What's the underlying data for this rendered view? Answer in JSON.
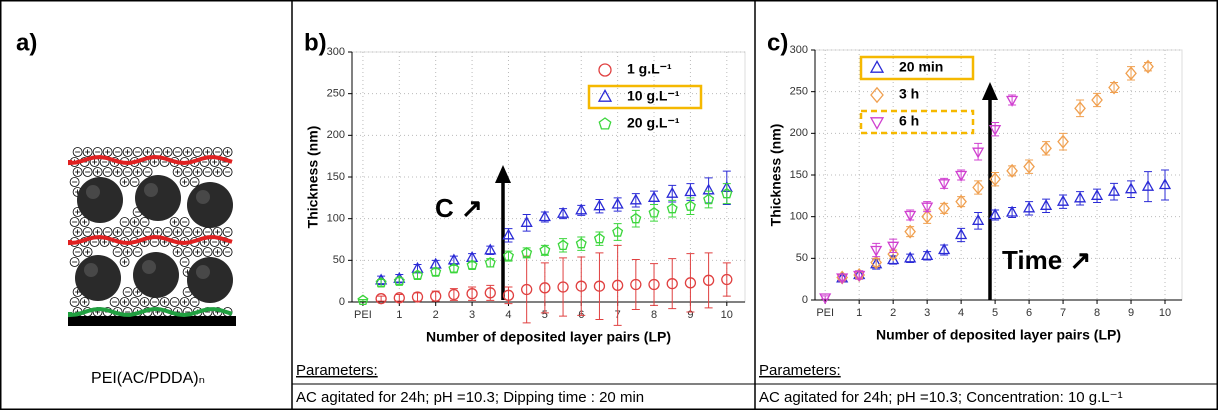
{
  "panel_a": {
    "label": "a)",
    "caption": "PEI(AC/PDDA)ₙ"
  },
  "chart_data": [
    {
      "type": "scatter",
      "panel_label": "b)",
      "xlabel": "Number of deposited layer pairs (LP)",
      "ylabel": "Thickness (nm)",
      "xlim": [
        -0.3,
        10.5
      ],
      "ylim": [
        0,
        300
      ],
      "xticks": [
        {
          "value": 0,
          "label": "PEI"
        },
        1,
        2,
        3,
        4,
        5,
        6,
        7,
        8,
        9,
        10
      ],
      "yticks": [
        0,
        50,
        100,
        150,
        200,
        250,
        300
      ],
      "grid": true,
      "legend": "upper right",
      "annotation": "C ↗",
      "parameters_heading": "Parameters:",
      "parameters": "AC agitated  for 24h; pH =10.3; Dipping time : 20 min",
      "series": [
        {
          "name": "1 g.L⁻¹",
          "color": "#e04040",
          "marker": "circle",
          "x": [
            0.5,
            1,
            1.5,
            2,
            2.5,
            3,
            3.5,
            4,
            4.5,
            5,
            5.5,
            6,
            6.5,
            7,
            7.5,
            8,
            8.5,
            9,
            9.5,
            10
          ],
          "values": [
            4,
            5,
            6,
            7,
            9,
            10,
            11,
            8,
            15,
            17,
            18,
            19,
            19,
            20,
            21,
            21,
            22,
            23,
            26,
            27
          ],
          "errors": [
            3,
            4,
            5,
            6,
            7,
            8,
            9,
            10,
            40,
            30,
            35,
            35,
            40,
            48,
            30,
            25,
            30,
            35,
            33,
            20
          ]
        },
        {
          "name": "10 g.L⁻¹",
          "color": "#2b2bd6",
          "marker": "triangle-up",
          "highlight": "solid",
          "x": [
            0.5,
            1,
            1.5,
            2,
            2.5,
            3,
            3.5,
            4,
            4.5,
            5,
            5.5,
            6,
            6.5,
            7,
            7.5,
            8,
            8.5,
            9,
            9.5,
            10
          ],
          "values": [
            26,
            28,
            40,
            45,
            50,
            53,
            62,
            80,
            95,
            102,
            106,
            110,
            115,
            117,
            122,
            125,
            130,
            132,
            134,
            137
          ],
          "errors": [
            5,
            5,
            5,
            5,
            5,
            5,
            5,
            8,
            10,
            6,
            6,
            6,
            8,
            8,
            8,
            8,
            10,
            10,
            15,
            20
          ]
        },
        {
          "name": "20 g.L⁻¹",
          "color": "#3cd63c",
          "marker": "pentagon",
          "x": [
            0,
            0.5,
            1,
            1.5,
            2,
            2.5,
            3,
            3.5,
            4,
            4.5,
            5,
            5.5,
            6,
            6.5,
            7,
            7.5,
            8,
            8.5,
            9,
            9.5,
            10
          ],
          "values": [
            2,
            23,
            25,
            32,
            36,
            40,
            44,
            47,
            55,
            59,
            62,
            68,
            70,
            76,
            84,
            100,
            107,
            112,
            115,
            123,
            130
          ],
          "errors": [
            1,
            4,
            4,
            4,
            4,
            4,
            4,
            5,
            6,
            6,
            6,
            8,
            8,
            8,
            10,
            10,
            10,
            10,
            10,
            10,
            12
          ]
        }
      ]
    },
    {
      "type": "scatter",
      "panel_label": "c)",
      "xlabel": "Number of deposited layer pairs (LP)",
      "ylabel": "Thickness (nm)",
      "xlim": [
        -0.3,
        10.5
      ],
      "ylim": [
        0,
        300
      ],
      "xticks": [
        {
          "value": 0,
          "label": "PEI"
        },
        1,
        2,
        3,
        4,
        5,
        6,
        7,
        8,
        9,
        10
      ],
      "yticks": [
        0,
        50,
        100,
        150,
        200,
        250,
        300
      ],
      "grid": true,
      "legend": "upper left",
      "annotation": "Time ↗",
      "parameters_heading": "Parameters:",
      "parameters": "AC agitated for 24h; pH =10.3; Concentration:  10 g.L⁻¹",
      "series": [
        {
          "name": "20 min",
          "color": "#2b2bd6",
          "marker": "triangle-up",
          "highlight": "solid",
          "x": [
            0.5,
            1,
            1.5,
            2,
            2.5,
            3,
            3.5,
            4,
            4.5,
            5,
            5.5,
            6,
            6.5,
            7,
            7.5,
            8,
            8.5,
            9,
            9.5,
            10
          ],
          "values": [
            26,
            30,
            43,
            48,
            50,
            53,
            60,
            78,
            95,
            102,
            105,
            110,
            113,
            118,
            122,
            125,
            130,
            133,
            136,
            138
          ],
          "errors": [
            4,
            5,
            6,
            5,
            5,
            5,
            6,
            8,
            10,
            6,
            6,
            8,
            8,
            8,
            8,
            8,
            10,
            10,
            18,
            18
          ]
        },
        {
          "name": "3 h",
          "color": "#f0a050",
          "marker": "diamond",
          "x": [
            0.5,
            1,
            1.5,
            2,
            2.5,
            3,
            3.5,
            4,
            4.5,
            5,
            5.5,
            6,
            6.5,
            7,
            7.5,
            8,
            8.5,
            9,
            9.5
          ],
          "values": [
            27,
            30,
            45,
            55,
            82,
            100,
            110,
            118,
            135,
            145,
            155,
            160,
            182,
            190,
            230,
            240,
            255,
            272,
            280
          ],
          "errors": [
            4,
            4,
            5,
            5,
            6,
            8,
            6,
            6,
            8,
            8,
            6,
            8,
            8,
            10,
            10,
            8,
            6,
            8,
            5
          ]
        },
        {
          "name": "6 h",
          "color": "#d040d0",
          "marker": "triangle-down",
          "highlight": "dashed",
          "x": [
            0,
            0.5,
            1,
            1.5,
            2,
            2.5,
            3,
            3.5,
            4,
            4.5,
            5,
            5.5
          ],
          "values": [
            3,
            27,
            30,
            60,
            65,
            102,
            112,
            140,
            150,
            178,
            205,
            240
          ],
          "errors": [
            2,
            4,
            5,
            8,
            8,
            6,
            6,
            6,
            6,
            10,
            8,
            6
          ]
        }
      ]
    }
  ]
}
